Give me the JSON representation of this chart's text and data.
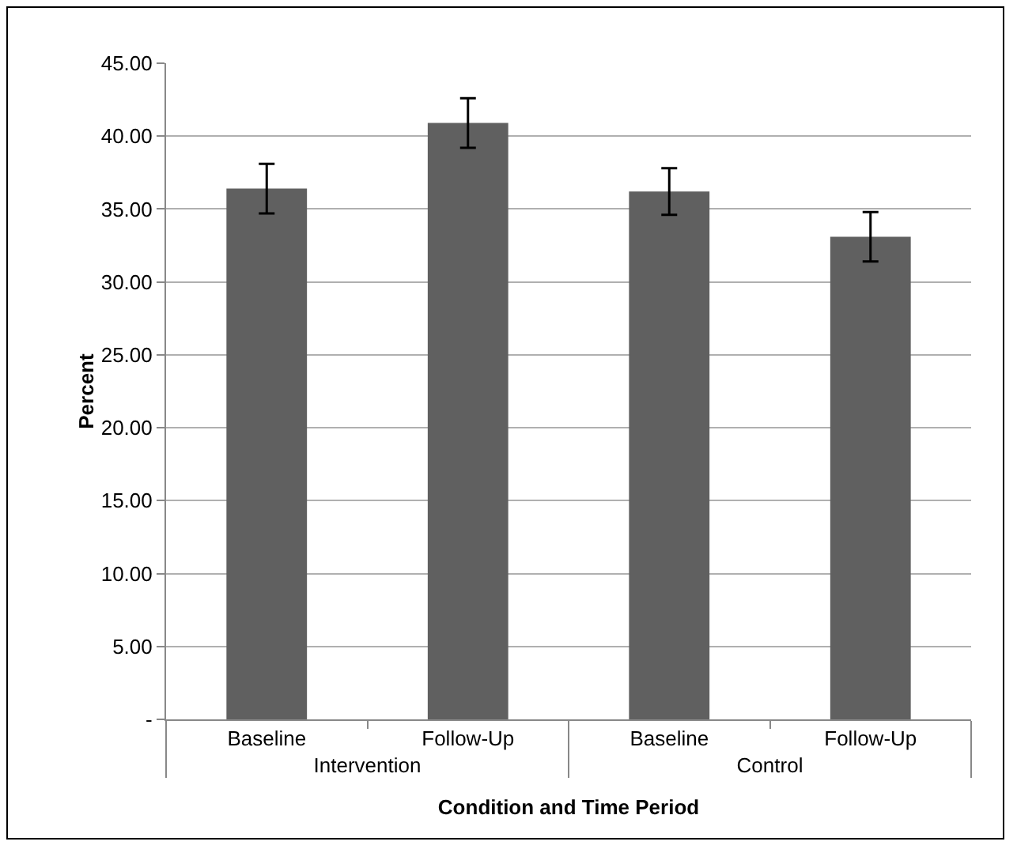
{
  "chart_data": {
    "type": "bar",
    "xlabel": "Condition and Time Period",
    "ylabel": "Percent",
    "categories": [
      "Baseline",
      "Follow-Up",
      "Baseline",
      "Follow-Up"
    ],
    "annotations": [
      "Intervention",
      "Control"
    ],
    "values": [
      36.4,
      40.9,
      36.2,
      33.1
    ],
    "errors": [
      1.7,
      1.7,
      1.6,
      1.7
    ],
    "color": "#606060",
    "ylim": [
      0,
      45
    ],
    "yticks": [
      {
        "value": 0,
        "label": "-"
      },
      {
        "value": 5,
        "label": "5.00"
      },
      {
        "value": 10,
        "label": "10.00"
      },
      {
        "value": 15,
        "label": "15.00"
      },
      {
        "value": 20,
        "label": "20.00"
      },
      {
        "value": 25,
        "label": "25.00"
      },
      {
        "value": 30,
        "label": "30.00"
      },
      {
        "value": 35,
        "label": "35.00"
      },
      {
        "value": 40,
        "label": "40.00"
      },
      {
        "value": 45,
        "label": "45.00"
      }
    ],
    "grid": "y"
  }
}
